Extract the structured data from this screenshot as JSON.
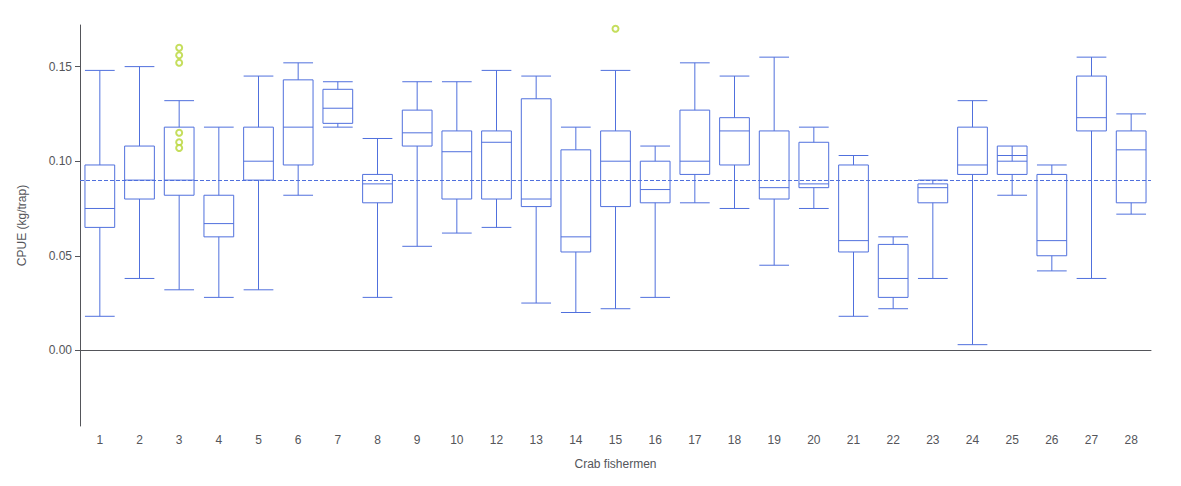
{
  "chart_data": {
    "type": "boxplot",
    "xlabel": "Crab fishermen",
    "ylabel": "CPUE (kg/trap)",
    "categories": [
      "1",
      "2",
      "3",
      "4",
      "5",
      "6",
      "7",
      "8",
      "9",
      "10",
      "12",
      "13",
      "14",
      "15",
      "16",
      "17",
      "18",
      "19",
      "20",
      "21",
      "22",
      "23",
      "24",
      "25",
      "26",
      "27",
      "28"
    ],
    "values": [
      [
        0.018,
        0.065,
        0.075,
        0.098,
        0.148
      ],
      [
        0.038,
        0.08,
        0.09,
        0.108,
        0.15
      ],
      [
        0.032,
        0.082,
        0.09,
        0.118,
        0.132
      ],
      [
        0.028,
        0.06,
        0.067,
        0.082,
        0.118
      ],
      [
        0.032,
        0.09,
        0.1,
        0.118,
        0.145
      ],
      [
        0.082,
        0.098,
        0.118,
        0.143,
        0.152
      ],
      [
        0.118,
        0.12,
        0.128,
        0.138,
        0.142
      ],
      [
        0.028,
        0.078,
        0.088,
        0.093,
        0.112
      ],
      [
        0.055,
        0.108,
        0.115,
        0.127,
        0.142
      ],
      [
        0.062,
        0.08,
        0.105,
        0.116,
        0.142
      ],
      [
        0.065,
        0.08,
        0.11,
        0.116,
        0.148
      ],
      [
        0.025,
        0.076,
        0.08,
        0.133,
        0.145
      ],
      [
        0.02,
        0.052,
        0.06,
        0.106,
        0.118
      ],
      [
        0.022,
        0.076,
        0.1,
        0.116,
        0.148
      ],
      [
        0.028,
        0.078,
        0.085,
        0.1,
        0.108
      ],
      [
        0.078,
        0.093,
        0.1,
        0.127,
        0.152
      ],
      [
        0.075,
        0.098,
        0.116,
        0.123,
        0.145
      ],
      [
        0.045,
        0.08,
        0.086,
        0.116,
        0.155
      ],
      [
        0.075,
        0.086,
        0.088,
        0.11,
        0.118
      ],
      [
        0.018,
        0.052,
        0.058,
        0.098,
        0.103
      ],
      [
        0.022,
        0.028,
        0.038,
        0.056,
        0.06
      ],
      [
        0.038,
        0.078,
        0.086,
        0.088,
        0.09
      ],
      [
        0.003,
        0.093,
        0.098,
        0.118,
        0.132
      ],
      [
        0.082,
        0.093,
        0.103,
        0.108,
        0.1
      ],
      [
        0.042,
        0.05,
        0.058,
        0.093,
        0.098
      ],
      [
        0.038,
        0.116,
        0.123,
        0.145,
        0.155
      ],
      [
        0.072,
        0.078,
        0.106,
        0.116,
        0.125
      ]
    ],
    "fliers": [
      [],
      [],
      [
        0.16,
        0.156,
        0.152,
        0.115,
        0.11,
        0.107
      ],
      [],
      [],
      [],
      [],
      [],
      [],
      [],
      [],
      [],
      [],
      [
        0.17
      ],
      [],
      [],
      [],
      [],
      [],
      [],
      [],
      [],
      [],
      [],
      [],
      [],
      []
    ],
    "hline": 0.09,
    "ylim": [
      -0.04,
      0.172
    ],
    "yticks": [
      {
        "value": 0,
        "label": "0.00"
      },
      0.05,
      {
        "value": 0.1,
        "label": "0.10"
      },
      0.15
    ],
    "grid": false
  }
}
